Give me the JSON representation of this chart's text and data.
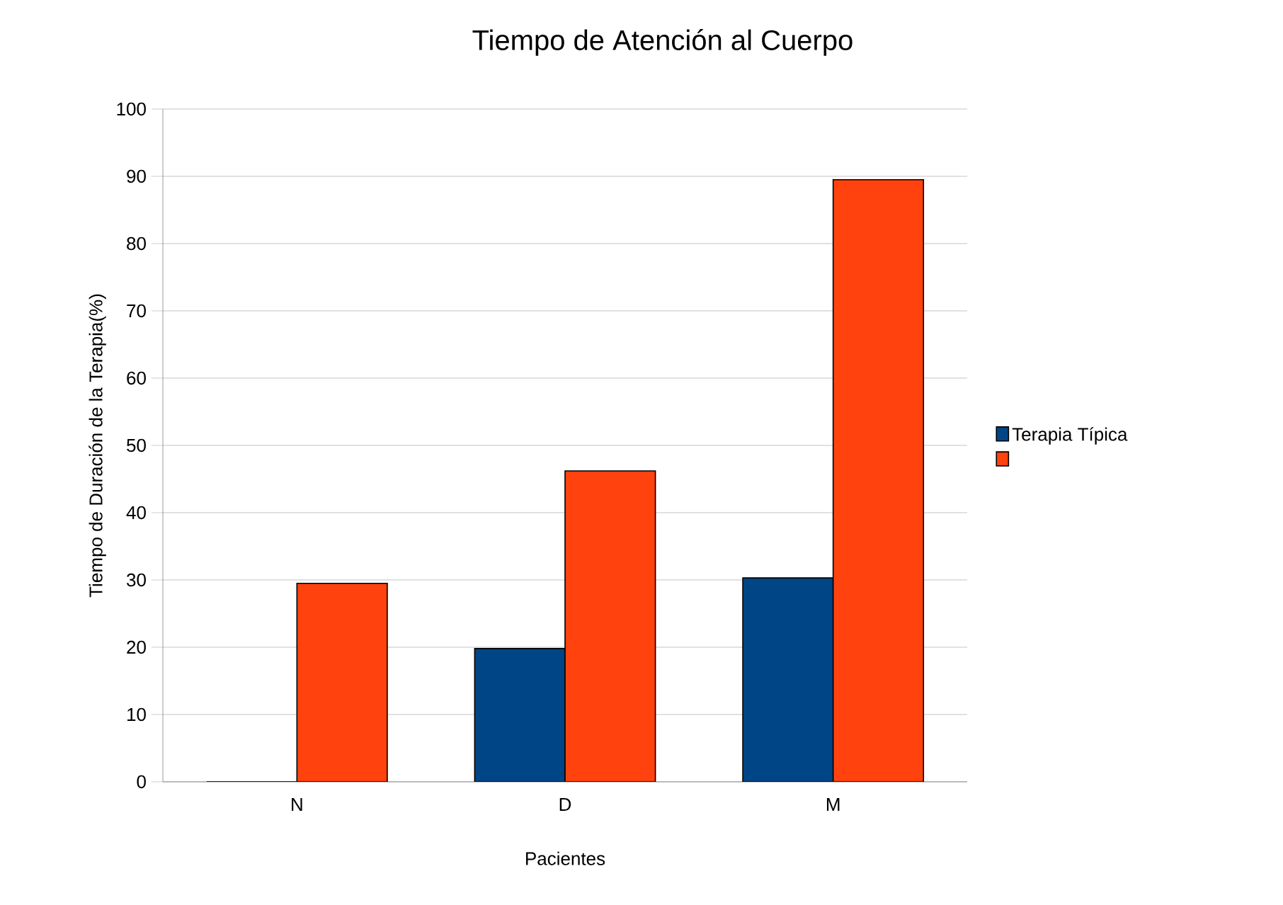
{
  "chart_data": {
    "type": "bar",
    "title": "Tiempo de Atención al Cuerpo",
    "xlabel": "Pacientes",
    "ylabel": "Tiempo de Duración de la Terapia(%)",
    "categories": [
      "N",
      "D",
      "M"
    ],
    "series": [
      {
        "name": "Terapia Típica",
        "color": "#004586",
        "values": [
          0,
          19.8,
          30.3
        ]
      },
      {
        "color": "#ff420e",
        "values": [
          29.5,
          46.2,
          89.5
        ]
      }
    ],
    "ylim": [
      0,
      100
    ],
    "yticks": [
      0,
      10,
      20,
      30,
      40,
      50,
      60,
      70,
      80,
      90,
      100
    ],
    "grid": "y",
    "legend": "right"
  }
}
